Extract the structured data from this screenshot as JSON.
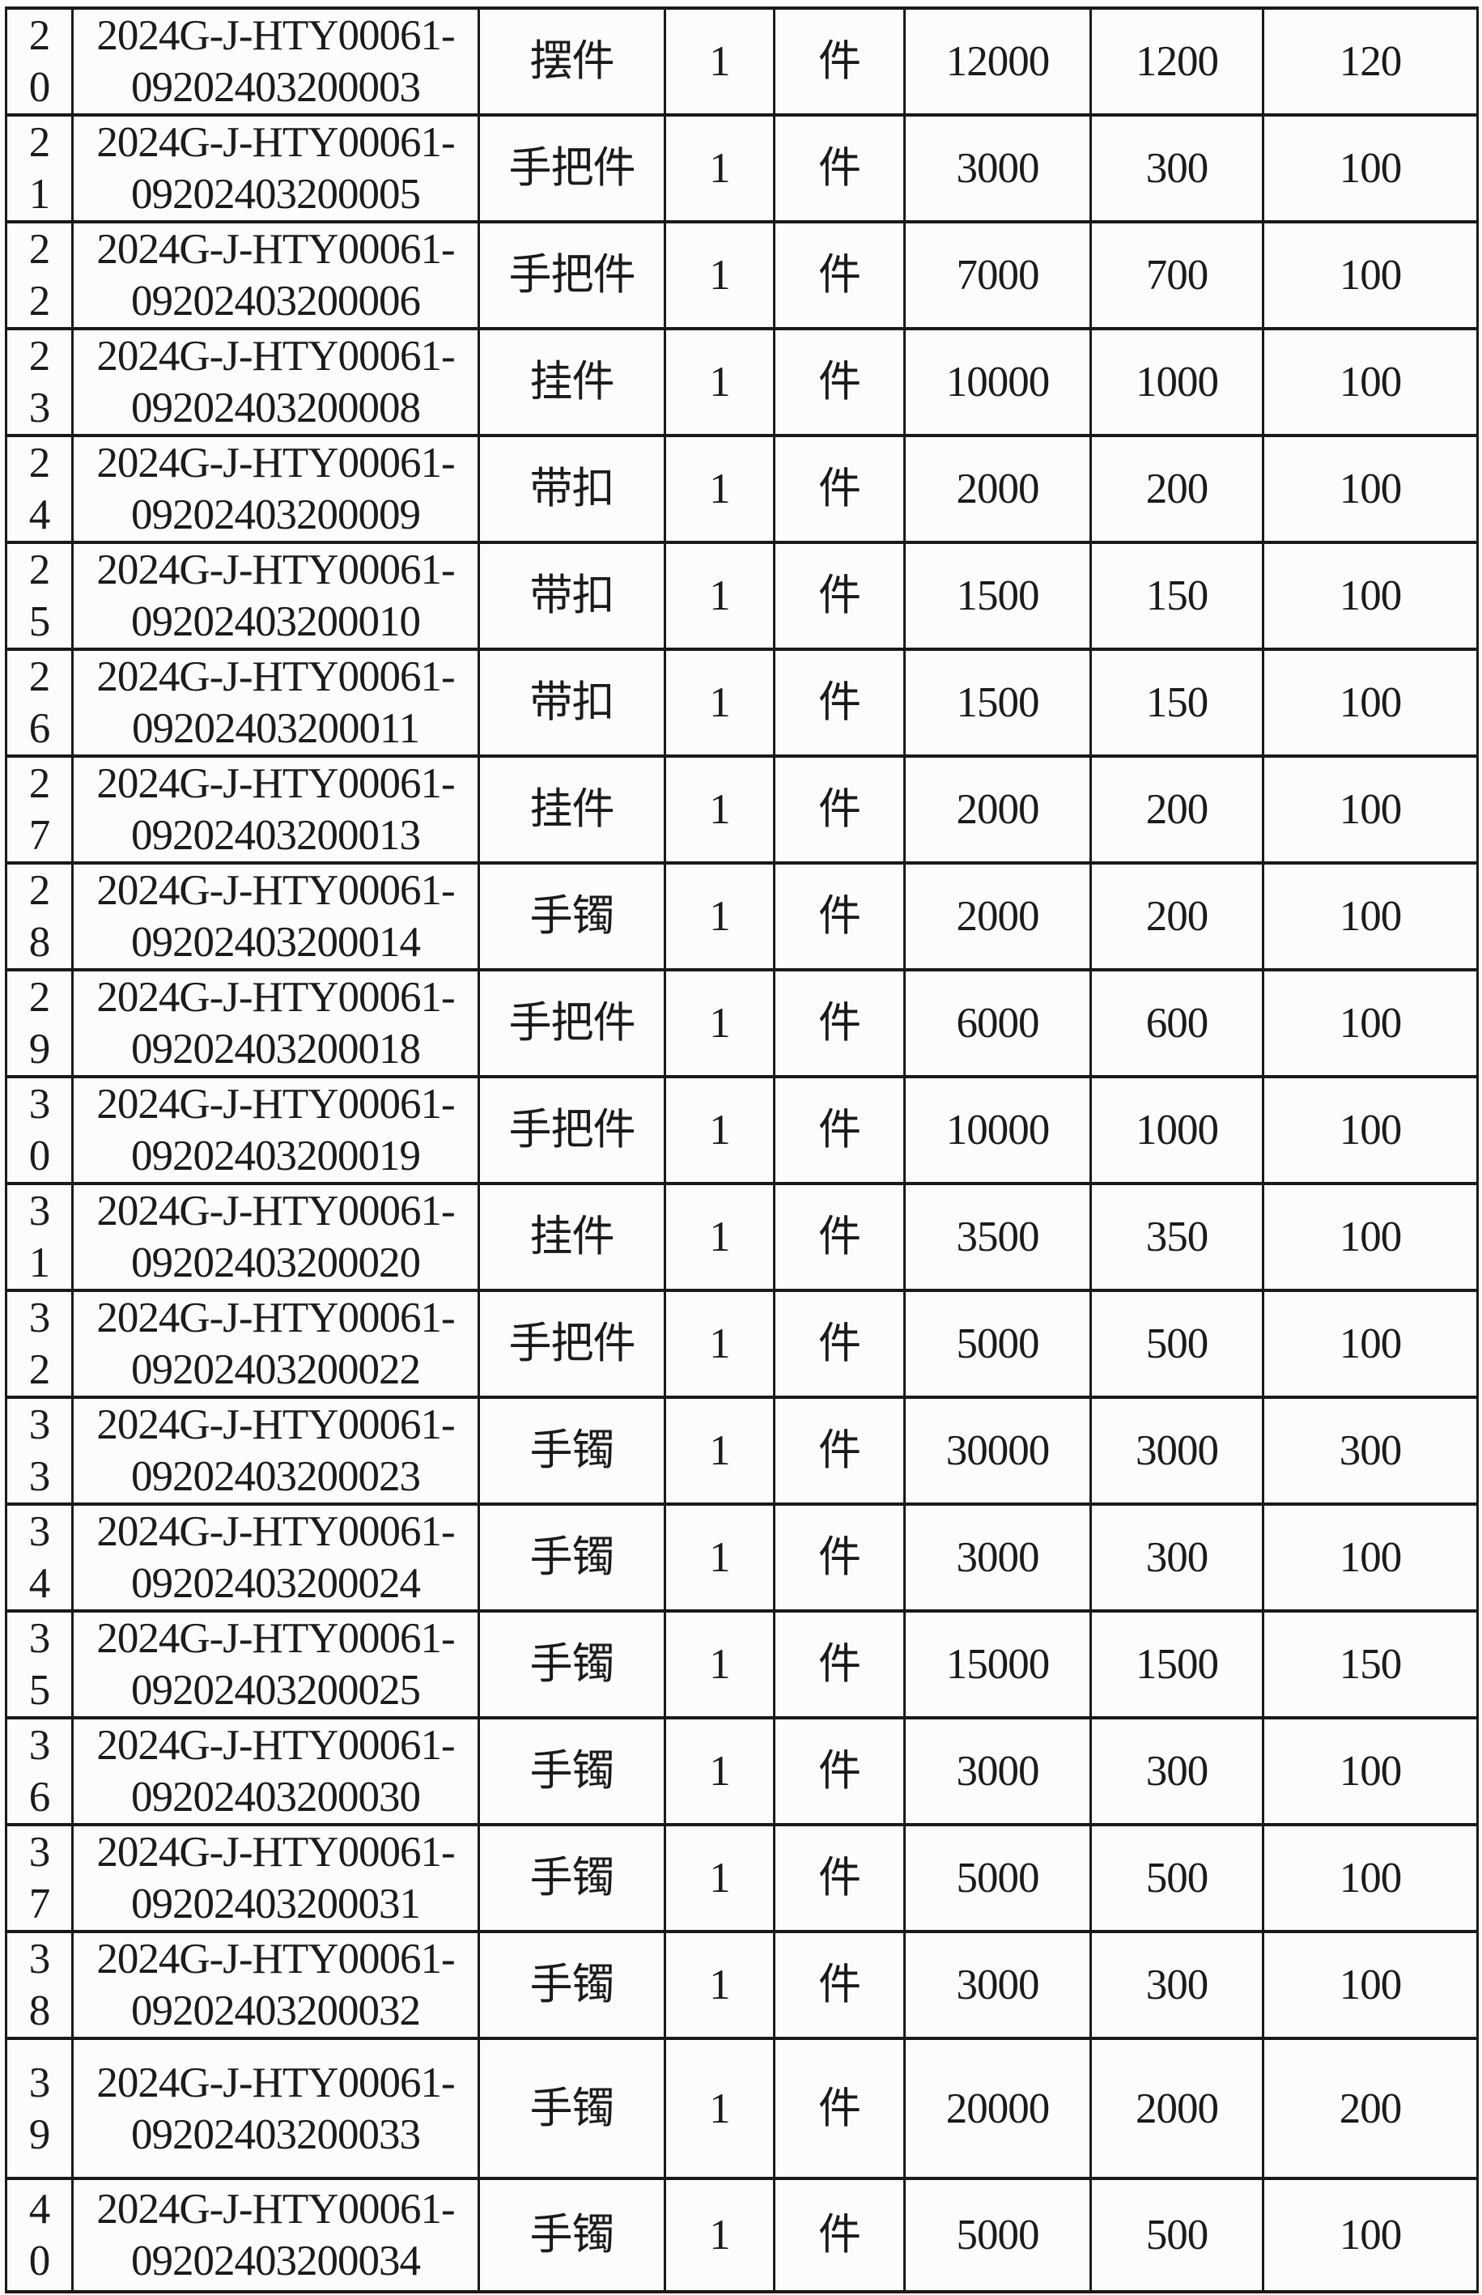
{
  "page": {
    "background_color": "#fcfcfa",
    "text_color": "#1b1b1b",
    "border_color": "#1a1a1a"
  },
  "table": {
    "column_keys": [
      "no",
      "id",
      "category",
      "qty",
      "unit",
      "amount_1",
      "amount_2",
      "amount_3"
    ],
    "rows": [
      {
        "no": "2\n0",
        "id": "2024G-J-HTY00061-\n09202403200003",
        "category": "摆件",
        "qty": "1",
        "unit": "件",
        "amount_1": "12000",
        "amount_2": "1200",
        "amount_3": "120"
      },
      {
        "no": "2\n1",
        "id": "2024G-J-HTY00061-\n09202403200005",
        "category": "手把件",
        "qty": "1",
        "unit": "件",
        "amount_1": "3000",
        "amount_2": "300",
        "amount_3": "100"
      },
      {
        "no": "2\n2",
        "id": "2024G-J-HTY00061-\n09202403200006",
        "category": "手把件",
        "qty": "1",
        "unit": "件",
        "amount_1": "7000",
        "amount_2": "700",
        "amount_3": "100"
      },
      {
        "no": "2\n3",
        "id": "2024G-J-HTY00061-\n09202403200008",
        "category": "挂件",
        "qty": "1",
        "unit": "件",
        "amount_1": "10000",
        "amount_2": "1000",
        "amount_3": "100"
      },
      {
        "no": "2\n4",
        "id": "2024G-J-HTY00061-\n09202403200009",
        "category": "带扣",
        "qty": "1",
        "unit": "件",
        "amount_1": "2000",
        "amount_2": "200",
        "amount_3": "100"
      },
      {
        "no": "2\n5",
        "id": "2024G-J-HTY00061-\n09202403200010",
        "category": "带扣",
        "qty": "1",
        "unit": "件",
        "amount_1": "1500",
        "amount_2": "150",
        "amount_3": "100"
      },
      {
        "no": "2\n6",
        "id": "2024G-J-HTY00061-\n09202403200011",
        "category": "带扣",
        "qty": "1",
        "unit": "件",
        "amount_1": "1500",
        "amount_2": "150",
        "amount_3": "100"
      },
      {
        "no": "2\n7",
        "id": "2024G-J-HTY00061-\n09202403200013",
        "category": "挂件",
        "qty": "1",
        "unit": "件",
        "amount_1": "2000",
        "amount_2": "200",
        "amount_3": "100"
      },
      {
        "no": "2\n8",
        "id": "2024G-J-HTY00061-\n09202403200014",
        "category": "手镯",
        "qty": "1",
        "unit": "件",
        "amount_1": "2000",
        "amount_2": "200",
        "amount_3": "100"
      },
      {
        "no": "2\n9",
        "id": "2024G-J-HTY00061-\n09202403200018",
        "category": "手把件",
        "qty": "1",
        "unit": "件",
        "amount_1": "6000",
        "amount_2": "600",
        "amount_3": "100"
      },
      {
        "no": "3\n0",
        "id": "2024G-J-HTY00061-\n09202403200019",
        "category": "手把件",
        "qty": "1",
        "unit": "件",
        "amount_1": "10000",
        "amount_2": "1000",
        "amount_3": "100"
      },
      {
        "no": "3\n1",
        "id": "2024G-J-HTY00061-\n09202403200020",
        "category": "挂件",
        "qty": "1",
        "unit": "件",
        "amount_1": "3500",
        "amount_2": "350",
        "amount_3": "100"
      },
      {
        "no": "3\n2",
        "id": "2024G-J-HTY00061-\n09202403200022",
        "category": "手把件",
        "qty": "1",
        "unit": "件",
        "amount_1": "5000",
        "amount_2": "500",
        "amount_3": "100"
      },
      {
        "no": "3\n3",
        "id": "2024G-J-HTY00061-\n09202403200023",
        "category": "手镯",
        "qty": "1",
        "unit": "件",
        "amount_1": "30000",
        "amount_2": "3000",
        "amount_3": "300"
      },
      {
        "no": "3\n4",
        "id": "2024G-J-HTY00061-\n09202403200024",
        "category": "手镯",
        "qty": "1",
        "unit": "件",
        "amount_1": "3000",
        "amount_2": "300",
        "amount_3": "100"
      },
      {
        "no": "3\n5",
        "id": "2024G-J-HTY00061-\n09202403200025",
        "category": "手镯",
        "qty": "1",
        "unit": "件",
        "amount_1": "15000",
        "amount_2": "1500",
        "amount_3": "150"
      },
      {
        "no": "3\n6",
        "id": "2024G-J-HTY00061-\n09202403200030",
        "category": "手镯",
        "qty": "1",
        "unit": "件",
        "amount_1": "3000",
        "amount_2": "300",
        "amount_3": "100"
      },
      {
        "no": "3\n7",
        "id": "2024G-J-HTY00061-\n09202403200031",
        "category": "手镯",
        "qty": "1",
        "unit": "件",
        "amount_1": "5000",
        "amount_2": "500",
        "amount_3": "100"
      },
      {
        "no": "3\n8",
        "id": "2024G-J-HTY00061-\n09202403200032",
        "category": "手镯",
        "qty": "1",
        "unit": "件",
        "amount_1": "3000",
        "amount_2": "300",
        "amount_3": "100"
      },
      {
        "no": "3\n9",
        "id": "2024G-J-HTY00061-\n09202403200033",
        "category": "手镯",
        "qty": "1",
        "unit": "件",
        "amount_1": "20000",
        "amount_2": "2000",
        "amount_3": "200"
      },
      {
        "no": "4\n0",
        "id": "2024G-J-HTY00061-\n09202403200034",
        "category": "手镯",
        "qty": "1",
        "unit": "件",
        "amount_1": "5000",
        "amount_2": "500",
        "amount_3": "100"
      }
    ]
  }
}
